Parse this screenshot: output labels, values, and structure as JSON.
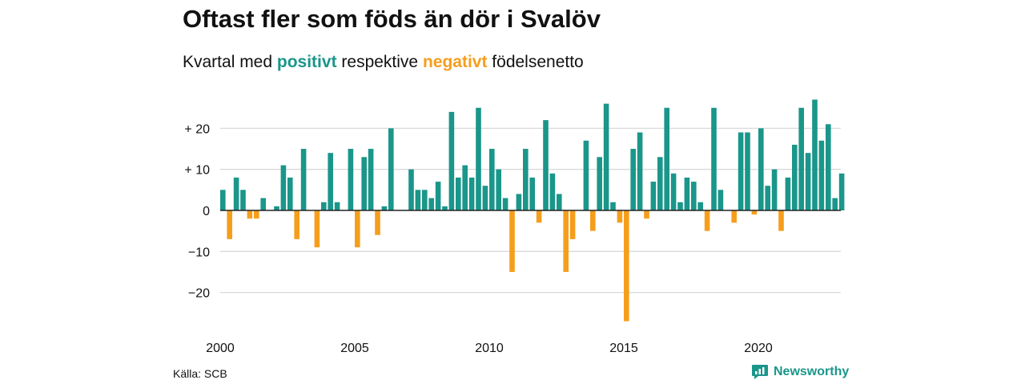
{
  "title": "Oftast fler som föds än dör i Svalöv",
  "subtitle": {
    "prefix": "Kvartal med ",
    "positive_word": "positivt",
    "middle": " respektive ",
    "negative_word": "negativt",
    "suffix": " födelsenetto"
  },
  "source": "Källa: SCB",
  "brand": {
    "name": "Newsworthy",
    "icon": "newsworthy-logo-icon"
  },
  "colors": {
    "positive": "#1a968a",
    "negative": "#f59e1c",
    "grid": "#d9d9d9",
    "zero": "#222222"
  },
  "chart_data": {
    "type": "bar",
    "x_start": 2000,
    "x_step_years": 0.25,
    "values": [
      5,
      -7,
      8,
      5,
      -2,
      -2,
      3,
      0,
      1,
      11,
      8,
      -7,
      15,
      0,
      -9,
      2,
      14,
      2,
      0,
      15,
      -9,
      13,
      15,
      -6,
      1,
      20,
      0,
      0,
      10,
      5,
      5,
      3,
      7,
      1,
      24,
      8,
      11,
      8,
      25,
      6,
      15,
      10,
      3,
      -15,
      4,
      15,
      8,
      -3,
      22,
      9,
      4,
      -15,
      -7,
      0,
      17,
      -5,
      13,
      26,
      2,
      -3,
      -27,
      15,
      19,
      -2,
      7,
      13,
      25,
      9,
      2,
      8,
      7,
      2,
      -5,
      25,
      5,
      0,
      -3,
      19,
      19,
      -1,
      20,
      6,
      10,
      -5,
      8,
      16,
      25,
      14,
      27,
      17,
      21,
      3,
      9
    ],
    "ylim": [
      -28,
      28
    ],
    "yticks": [
      20,
      10,
      0,
      -10,
      -20
    ],
    "ytick_labels": [
      "+ 20",
      "+ 10",
      "0",
      "−10",
      "−20"
    ],
    "xticks": [
      2000,
      2005,
      2010,
      2015,
      2020
    ],
    "xtick_labels": [
      "2000",
      "2005",
      "2010",
      "2015",
      "2020"
    ],
    "xlabel": "",
    "ylabel": "",
    "grid": true
  }
}
